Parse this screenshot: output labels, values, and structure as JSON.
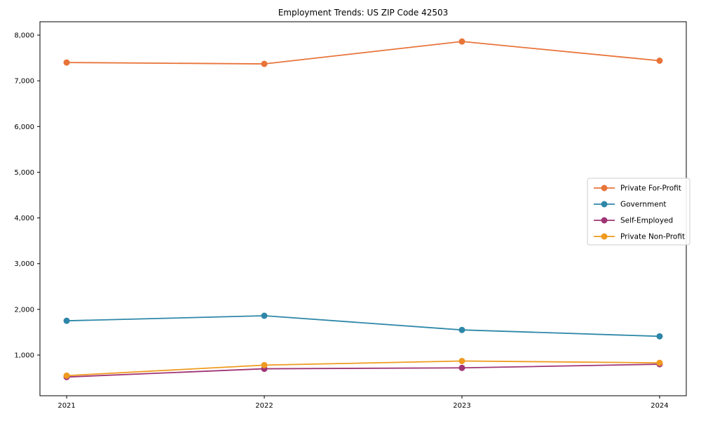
{
  "chart_data": {
    "type": "line",
    "title": "Employment Trends: US ZIP Code 42503",
    "x": [
      2021,
      2022,
      2023,
      2024
    ],
    "x_tick_labels": [
      "2021",
      "2022",
      "2023",
      "2024"
    ],
    "xlim": [
      2020.865,
      2024.135
    ],
    "ylim": [
      110,
      8292
    ],
    "yticks": [
      1000,
      2000,
      3000,
      4000,
      5000,
      6000,
      7000,
      8000
    ],
    "ytick_labels": [
      "1,000",
      "2,000",
      "3,000",
      "4,000",
      "5,000",
      "6,000",
      "7,000",
      "8,000"
    ],
    "grid": false,
    "legend_position": "center right",
    "marker": "circle",
    "series": [
      {
        "name": "Private For-Profit",
        "color": "#e8743a",
        "values": [
          7400,
          7370,
          7860,
          7440
        ]
      },
      {
        "name": "Government",
        "color": "#2e87a8",
        "values": [
          1750,
          1860,
          1550,
          1410
        ]
      },
      {
        "name": "Self-Employed",
        "color": "#a03575",
        "values": [
          520,
          700,
          720,
          800
        ]
      },
      {
        "name": "Private Non-Profit",
        "color": "#ef9b20",
        "values": [
          550,
          780,
          870,
          830
        ]
      }
    ],
    "axis_color": "#000000",
    "legend_border_color": "#cccccc",
    "background_color": "#ffffff"
  }
}
